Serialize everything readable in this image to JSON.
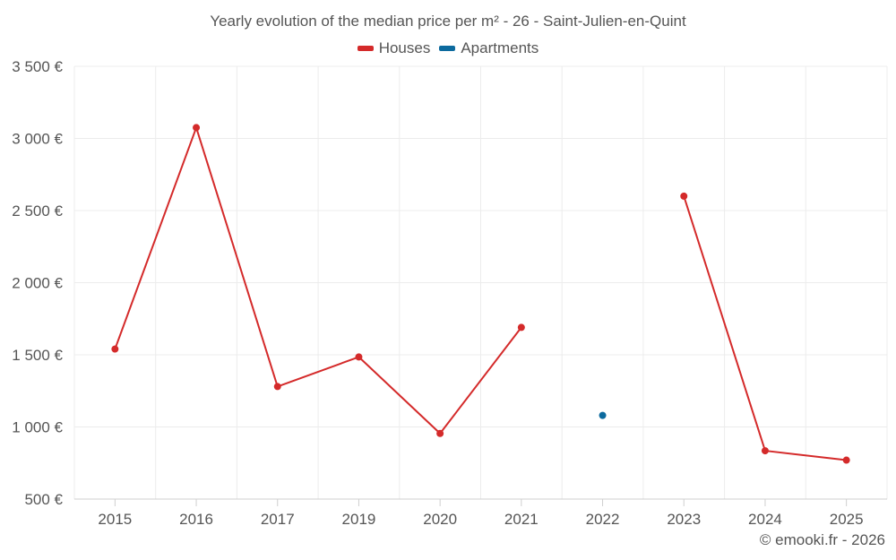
{
  "chart_data": {
    "type": "line",
    "title": "Yearly evolution of the median price per m² - 26 - Saint-Julien-en-Quint",
    "categories": [
      "2015",
      "2016",
      "2017",
      "2019",
      "2020",
      "2021",
      "2022",
      "2023",
      "2024",
      "2025"
    ],
    "series": [
      {
        "name": "Houses",
        "color": "#d42a2a",
        "values": [
          1540,
          3075,
          1280,
          1485,
          955,
          1690,
          null,
          2600,
          835,
          770
        ]
      },
      {
        "name": "Apartments",
        "color": "#0c6a9e",
        "values": [
          null,
          null,
          null,
          null,
          null,
          null,
          1080,
          null,
          null,
          null
        ]
      }
    ],
    "y_ticks": [
      500,
      1000,
      1500,
      2000,
      2500,
      3000,
      3500
    ],
    "y_tick_labels": [
      "500 €",
      "1 000 €",
      "1 500 €",
      "2 000 €",
      "2 500 €",
      "3 000 €",
      "3 500 €"
    ],
    "ylim": [
      500,
      3500
    ],
    "xlabel": "",
    "ylabel": "",
    "grid": true,
    "legend_position": "top-center"
  },
  "copyright": "© emooki.fr - 2026"
}
